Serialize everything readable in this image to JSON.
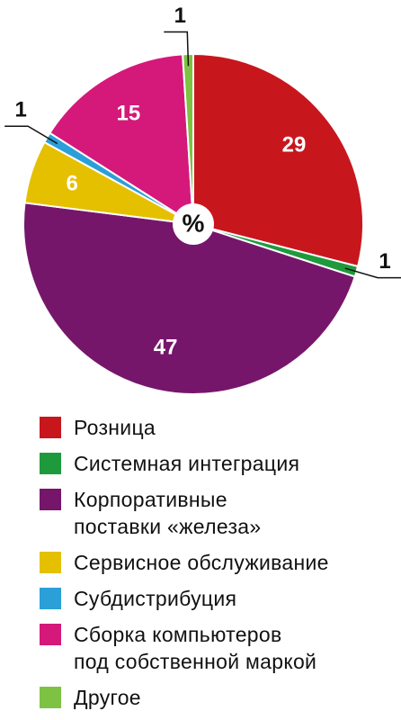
{
  "chart_data": {
    "type": "pie",
    "center_label": "%",
    "categories": [
      "Розница",
      "Системная интеграция",
      "Корпоративные\nпоставки «железа»",
      "Сервисное обслуживание",
      "Субдистрибуция",
      "Сборка компьютеров\nпод собственной маркой",
      "Другое"
    ],
    "values": [
      29,
      1,
      47,
      6,
      1,
      15,
      1
    ],
    "colors": [
      "#c8161d",
      "#1e9a3c",
      "#76166b",
      "#e5c000",
      "#2a9fd8",
      "#d4197a",
      "#7dc242"
    ]
  }
}
